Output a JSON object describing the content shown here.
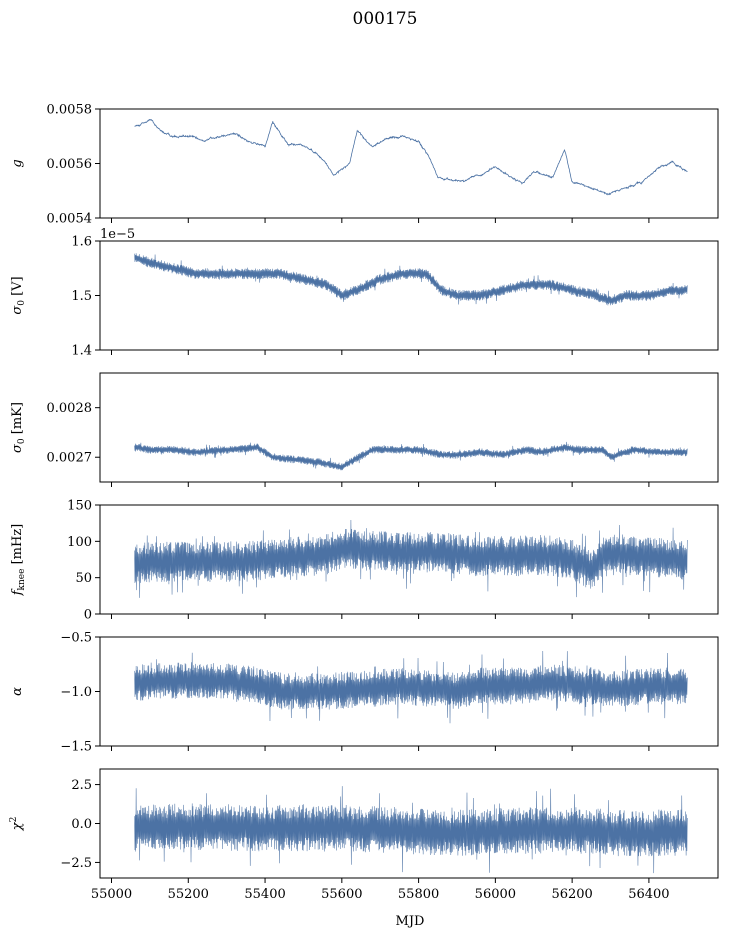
{
  "figure": {
    "title": "000175",
    "xlabel": "MJD"
  },
  "colors": {
    "series": "#4c72a4",
    "axes": "#000000",
    "background": "#ffffff"
  },
  "chart_data": [
    {
      "type": "line",
      "ylabel": "g",
      "ylim": [
        0.0054,
        0.0058
      ],
      "yticks": [
        "0.0054",
        "0.0056",
        "0.0058"
      ],
      "ytick_values": [
        0.0054,
        0.0056,
        0.0058
      ],
      "xlim": [
        54970,
        56580
      ],
      "x": [
        55060,
        55100,
        55130,
        55160,
        55200,
        55240,
        55280,
        55320,
        55360,
        55400,
        55420,
        55460,
        55500,
        55540,
        55580,
        55620,
        55640,
        55680,
        55720,
        55760,
        55800,
        55830,
        55850,
        55880,
        55920,
        55960,
        56000,
        56040,
        56070,
        56100,
        56150,
        56180,
        56200,
        56240,
        56280,
        56300,
        56340,
        56380,
        56420,
        56460,
        56500
      ],
      "values": [
        0.00574,
        0.00576,
        0.00572,
        0.0057,
        0.0057,
        0.00568,
        0.0057,
        0.00571,
        0.00568,
        0.00566,
        0.00575,
        0.00567,
        0.00567,
        0.00563,
        0.00556,
        0.0056,
        0.00572,
        0.00566,
        0.00569,
        0.0057,
        0.00568,
        0.00562,
        0.00555,
        0.00554,
        0.00554,
        0.00556,
        0.00559,
        0.00555,
        0.00553,
        0.00557,
        0.00555,
        0.00565,
        0.00553,
        0.00552,
        0.00549,
        0.00549,
        0.00551,
        0.00553,
        0.00558,
        0.00561,
        0.00557
      ],
      "band": 7e-06
    },
    {
      "type": "line",
      "ylabel": "σ0 [V]",
      "offset_text": "1e−5",
      "ylim": [
        1.4,
        1.6
      ],
      "yticks": [
        "1.4",
        "1.5",
        "1.6"
      ],
      "ytick_values": [
        1.4,
        1.5,
        1.6
      ],
      "xlim": [
        54970,
        56580
      ],
      "x": [
        55060,
        55100,
        55160,
        55220,
        55300,
        55380,
        55440,
        55500,
        55560,
        55600,
        55640,
        55700,
        55760,
        55820,
        55860,
        55900,
        55960,
        56020,
        56080,
        56140,
        56200,
        56260,
        56300,
        56340,
        56400,
        56460,
        56500
      ],
      "values": [
        1.57,
        1.56,
        1.55,
        1.54,
        1.54,
        1.54,
        1.54,
        1.53,
        1.52,
        1.5,
        1.51,
        1.53,
        1.54,
        1.54,
        1.51,
        1.5,
        1.5,
        1.51,
        1.52,
        1.52,
        1.51,
        1.5,
        1.49,
        1.5,
        1.5,
        1.51,
        1.51
      ],
      "band": 0.01
    },
    {
      "type": "line",
      "ylabel": "σ0 [mK]",
      "ylim": [
        0.00265,
        0.00287
      ],
      "yticks": [
        "0.0027",
        "0.0028"
      ],
      "ytick_values": [
        0.0027,
        0.0028
      ],
      "xlim": [
        54970,
        56580
      ],
      "x": [
        55060,
        55100,
        55160,
        55220,
        55300,
        55380,
        55420,
        55480,
        55540,
        55600,
        55620,
        55680,
        55740,
        55800,
        55860,
        55900,
        55960,
        56020,
        56080,
        56120,
        56180,
        56220,
        56280,
        56300,
        56360,
        56420,
        56500
      ],
      "values": [
        0.00272,
        0.002715,
        0.002715,
        0.00271,
        0.002715,
        0.00272,
        0.0027,
        0.002695,
        0.00269,
        0.00268,
        0.00269,
        0.002715,
        0.002715,
        0.002715,
        0.002705,
        0.002705,
        0.00271,
        0.002705,
        0.002715,
        0.00271,
        0.00272,
        0.002715,
        0.002715,
        0.0027,
        0.002715,
        0.00271,
        0.00271
      ],
      "band": 8e-06
    },
    {
      "type": "line",
      "ylabel": "fknee [mHz]",
      "ylim": [
        0,
        150
      ],
      "yticks": [
        "0",
        "50",
        "100",
        "150"
      ],
      "ytick_values": [
        0,
        50,
        100,
        150
      ],
      "xlim": [
        54970,
        56580
      ],
      "x": [
        55060,
        55150,
        55250,
        55350,
        55450,
        55550,
        55600,
        55650,
        55750,
        55850,
        55900,
        55950,
        56050,
        56150,
        56200,
        56250,
        56280,
        56320,
        56400,
        56500
      ],
      "values": [
        70,
        72,
        72,
        72,
        78,
        80,
        90,
        88,
        85,
        85,
        82,
        80,
        80,
        80,
        75,
        60,
        80,
        82,
        78,
        75
      ],
      "band": 28
    },
    {
      "type": "line",
      "ylabel": "α",
      "ylim": [
        -1.5,
        -0.5
      ],
      "yticks": [
        "−1.5",
        "−1.0",
        "−0.5"
      ],
      "ytick_values": [
        -1.5,
        -1.0,
        -0.5
      ],
      "xlim": [
        54970,
        56580
      ],
      "x": [
        55060,
        55150,
        55250,
        55350,
        55450,
        55550,
        55650,
        55750,
        55850,
        55900,
        55950,
        56050,
        56150,
        56250,
        56300,
        56400,
        56500
      ],
      "values": [
        -0.92,
        -0.9,
        -0.9,
        -0.92,
        -1.0,
        -1.0,
        -0.98,
        -0.95,
        -0.98,
        -1.0,
        -0.95,
        -0.95,
        -0.92,
        -0.95,
        -0.98,
        -0.95,
        -0.95
      ],
      "band": 0.17
    },
    {
      "type": "line",
      "ylabel": "χ2",
      "ylim": [
        -3.5,
        3.5
      ],
      "yticks": [
        "−2.5",
        "0.0",
        "2.5"
      ],
      "ytick_values": [
        -2.5,
        0.0,
        2.5
      ],
      "xlim": [
        54970,
        56580
      ],
      "x": [
        55060,
        55200,
        55400,
        55600,
        55800,
        55900,
        56000,
        56200,
        56300,
        56500
      ],
      "values": [
        -0.3,
        -0.2,
        -0.3,
        -0.3,
        -0.5,
        -0.6,
        -0.5,
        -0.4,
        -0.6,
        -0.6
      ],
      "band": 1.5
    }
  ],
  "xaxis": {
    "ticks": [
      "55000",
      "55200",
      "55400",
      "55600",
      "55800",
      "56000",
      "56200",
      "56400"
    ],
    "tick_values": [
      55000,
      55200,
      55400,
      55600,
      55800,
      56000,
      56200,
      56400
    ]
  }
}
